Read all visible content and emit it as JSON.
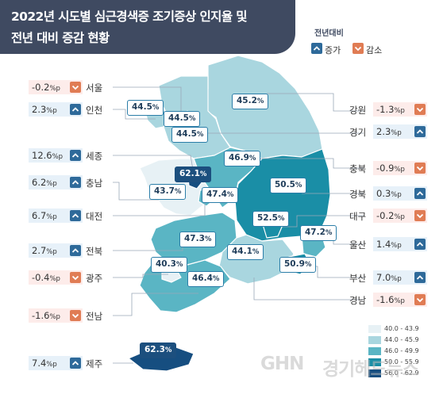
{
  "title": {
    "line1": "2022년 시도별 심근경색증 조기증상 인지율 및",
    "line2": "전년 대비 증감 현황"
  },
  "legend": {
    "title": "전년대비",
    "increase": "증가",
    "decrease": "감소"
  },
  "unit": "%p",
  "pct_sign": "%",
  "regions": [
    {
      "key": "seoul",
      "name": "서울",
      "side": "left",
      "change": "-0.2",
      "direction": "down",
      "rate": "44.5"
    },
    {
      "key": "incheon",
      "name": "인천",
      "side": "left",
      "change": "2.3",
      "direction": "up",
      "rate": "44.5"
    },
    {
      "key": "sejong",
      "name": "세종",
      "side": "left",
      "change": "12.6",
      "direction": "up",
      "rate": "62.1"
    },
    {
      "key": "chungnam",
      "name": "충남",
      "side": "left",
      "change": "6.2",
      "direction": "up",
      "rate": "43.7"
    },
    {
      "key": "daejeon",
      "name": "대전",
      "side": "left",
      "change": "6.7",
      "direction": "up",
      "rate": "47.4"
    },
    {
      "key": "jeonbuk",
      "name": "전북",
      "side": "left",
      "change": "2.7",
      "direction": "up",
      "rate": "47.3"
    },
    {
      "key": "gwangju",
      "name": "광주",
      "side": "left",
      "change": "-0.4",
      "direction": "down",
      "rate": "40.3"
    },
    {
      "key": "jeonnam",
      "name": "전남",
      "side": "left",
      "change": "-1.6",
      "direction": "down",
      "rate": "46.4"
    },
    {
      "key": "jeju",
      "name": "제주",
      "side": "left",
      "change": "7.4",
      "direction": "up",
      "rate": "62.3"
    },
    {
      "key": "gangwon",
      "name": "강원",
      "side": "right",
      "change": "-1.3",
      "direction": "down",
      "rate": "45.2"
    },
    {
      "key": "gyeonggi",
      "name": "경기",
      "side": "right",
      "change": "2.3",
      "direction": "up",
      "rate": "44.5"
    },
    {
      "key": "chungbuk",
      "name": "충북",
      "side": "right",
      "change": "-0.9",
      "direction": "down",
      "rate": "46.9"
    },
    {
      "key": "gyeongbuk",
      "name": "경북",
      "side": "right",
      "change": "0.3",
      "direction": "up",
      "rate": "50.5"
    },
    {
      "key": "daegu",
      "name": "대구",
      "side": "right",
      "change": "-0.2",
      "direction": "down",
      "rate": "52.5"
    },
    {
      "key": "ulsan",
      "name": "울산",
      "side": "right",
      "change": "1.4",
      "direction": "up",
      "rate": "47.2"
    },
    {
      "key": "busan",
      "name": "부산",
      "side": "right",
      "change": "7.0",
      "direction": "up",
      "rate": "50.9"
    },
    {
      "key": "gyeongnam",
      "name": "경남",
      "side": "right",
      "change": "-1.6",
      "direction": "down",
      "rate": "44.1"
    }
  ],
  "scale": [
    {
      "range": "40.0 - 43.9",
      "color": "#e7f1f5"
    },
    {
      "range": "44.0 - 45.9",
      "color": "#a9d6df"
    },
    {
      "range": "46.0 - 49.9",
      "color": "#5ab5c4"
    },
    {
      "range": "50.0 - 55.9",
      "color": "#1a8ea6"
    },
    {
      "range": "56.0 - 62.9",
      "color": "#164e80"
    }
  ],
  "logo": {
    "mark": "GHN",
    "text": "경기헤드뉴스"
  }
}
